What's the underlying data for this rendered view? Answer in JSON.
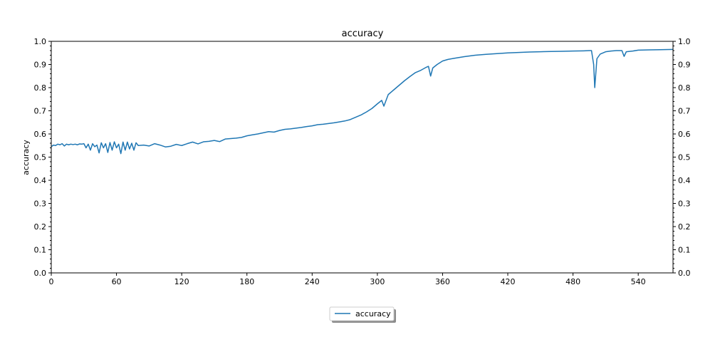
{
  "chart_data": {
    "type": "line",
    "title": "accuracy",
    "xlabel": "",
    "ylabel": "accuracy",
    "xlim": [
      0,
      572
    ],
    "ylim": [
      0.0,
      1.0
    ],
    "x_ticks": [
      "0",
      "60",
      "120",
      "180",
      "240",
      "300",
      "360",
      "420",
      "480",
      "540"
    ],
    "y_ticks": [
      "0.0",
      "0.1",
      "0.2",
      "0.3",
      "0.4",
      "0.5",
      "0.6",
      "0.7",
      "0.8",
      "0.9",
      "1.0"
    ],
    "right_y_ticks": [
      "0.0",
      "0.1",
      "0.2",
      "0.3",
      "0.4",
      "0.5",
      "0.6",
      "0.7",
      "0.8",
      "0.9",
      "1.0"
    ],
    "grid": false,
    "legend_position": "bottom-center",
    "series": [
      {
        "name": "accuracy",
        "color": "#1f77b4",
        "x": [
          0,
          2,
          4,
          6,
          8,
          10,
          12,
          14,
          16,
          18,
          20,
          22,
          24,
          26,
          28,
          30,
          32,
          34,
          36,
          38,
          40,
          42,
          44,
          46,
          48,
          50,
          52,
          54,
          56,
          58,
          60,
          62,
          64,
          66,
          68,
          70,
          72,
          74,
          76,
          78,
          80,
          85,
          90,
          95,
          100,
          105,
          110,
          115,
          120,
          125,
          130,
          135,
          140,
          145,
          150,
          155,
          160,
          165,
          170,
          175,
          180,
          185,
          190,
          195,
          200,
          205,
          210,
          215,
          220,
          225,
          230,
          235,
          240,
          245,
          250,
          255,
          260,
          265,
          270,
          275,
          280,
          285,
          290,
          295,
          300,
          304,
          306,
          310,
          315,
          320,
          325,
          330,
          335,
          340,
          345,
          347,
          349,
          351,
          355,
          360,
          365,
          370,
          375,
          380,
          390,
          400,
          410,
          420,
          430,
          440,
          450,
          460,
          470,
          480,
          490,
          495,
          497,
          499,
          500,
          502,
          505,
          510,
          515,
          520,
          525,
          527,
          529,
          535,
          540,
          550,
          560,
          572
        ],
        "values": [
          0.545,
          0.552,
          0.55,
          0.556,
          0.553,
          0.558,
          0.548,
          0.556,
          0.553,
          0.556,
          0.554,
          0.556,
          0.553,
          0.557,
          0.556,
          0.558,
          0.54,
          0.556,
          0.53,
          0.558,
          0.545,
          0.552,
          0.518,
          0.562,
          0.54,
          0.558,
          0.52,
          0.563,
          0.53,
          0.566,
          0.54,
          0.556,
          0.515,
          0.565,
          0.53,
          0.565,
          0.535,
          0.56,
          0.53,
          0.562,
          0.55,
          0.552,
          0.548,
          0.558,
          0.552,
          0.544,
          0.547,
          0.555,
          0.55,
          0.558,
          0.565,
          0.557,
          0.566,
          0.568,
          0.572,
          0.567,
          0.578,
          0.58,
          0.582,
          0.585,
          0.592,
          0.596,
          0.6,
          0.605,
          0.61,
          0.608,
          0.615,
          0.62,
          0.622,
          0.625,
          0.628,
          0.632,
          0.635,
          0.64,
          0.642,
          0.645,
          0.648,
          0.652,
          0.656,
          0.662,
          0.672,
          0.682,
          0.695,
          0.71,
          0.73,
          0.745,
          0.72,
          0.77,
          0.79,
          0.81,
          0.83,
          0.848,
          0.865,
          0.875,
          0.888,
          0.892,
          0.85,
          0.885,
          0.9,
          0.915,
          0.922,
          0.926,
          0.93,
          0.934,
          0.94,
          0.944,
          0.947,
          0.95,
          0.952,
          0.954,
          0.955,
          0.956,
          0.957,
          0.958,
          0.959,
          0.96,
          0.96,
          0.9,
          0.8,
          0.925,
          0.945,
          0.955,
          0.958,
          0.96,
          0.96,
          0.935,
          0.955,
          0.958,
          0.962,
          0.963,
          0.964,
          0.965
        ]
      }
    ]
  }
}
